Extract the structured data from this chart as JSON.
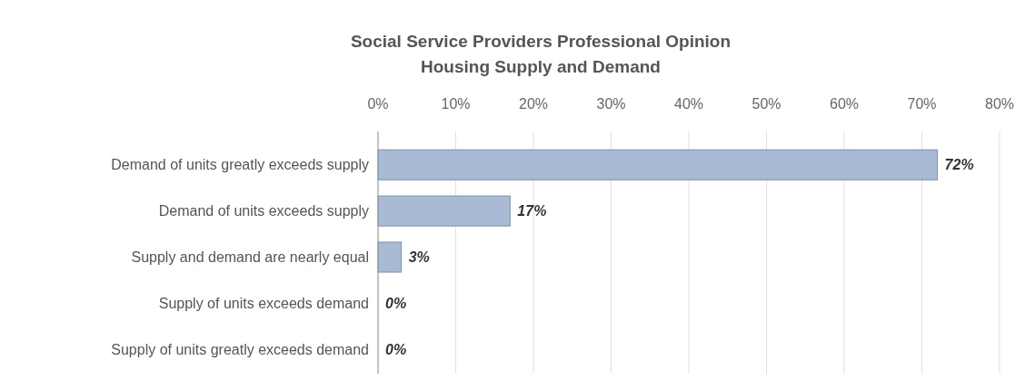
{
  "chart_data": {
    "type": "bar",
    "orientation": "horizontal",
    "title": "Social Service Providers Professional Opinion",
    "subtitle": "Housing Supply and Demand",
    "categories": [
      "Demand of units greatly exceeds supply",
      "Demand of units exceeds supply",
      "Supply and demand are nearly equal",
      "Supply of units exceeds demand",
      "Supply of units greatly exceeds demand"
    ],
    "values": [
      72,
      17,
      3,
      0,
      0
    ],
    "value_labels": [
      "72%",
      "17%",
      "3%",
      "0%",
      "0%"
    ],
    "color": "#a9bbd4",
    "xlim": [
      0,
      80
    ],
    "xticks": [
      {
        "value": 0,
        "label": "0%"
      },
      {
        "value": 10,
        "label": "10%"
      },
      {
        "value": 20,
        "label": "20%"
      },
      {
        "value": 30,
        "label": "30%"
      },
      {
        "value": 40,
        "label": "40%"
      },
      {
        "value": 50,
        "label": "50%"
      },
      {
        "value": 60,
        "label": "60%"
      },
      {
        "value": 70,
        "label": "70%"
      },
      {
        "value": 80,
        "label": "80%"
      }
    ],
    "grid": "x"
  }
}
